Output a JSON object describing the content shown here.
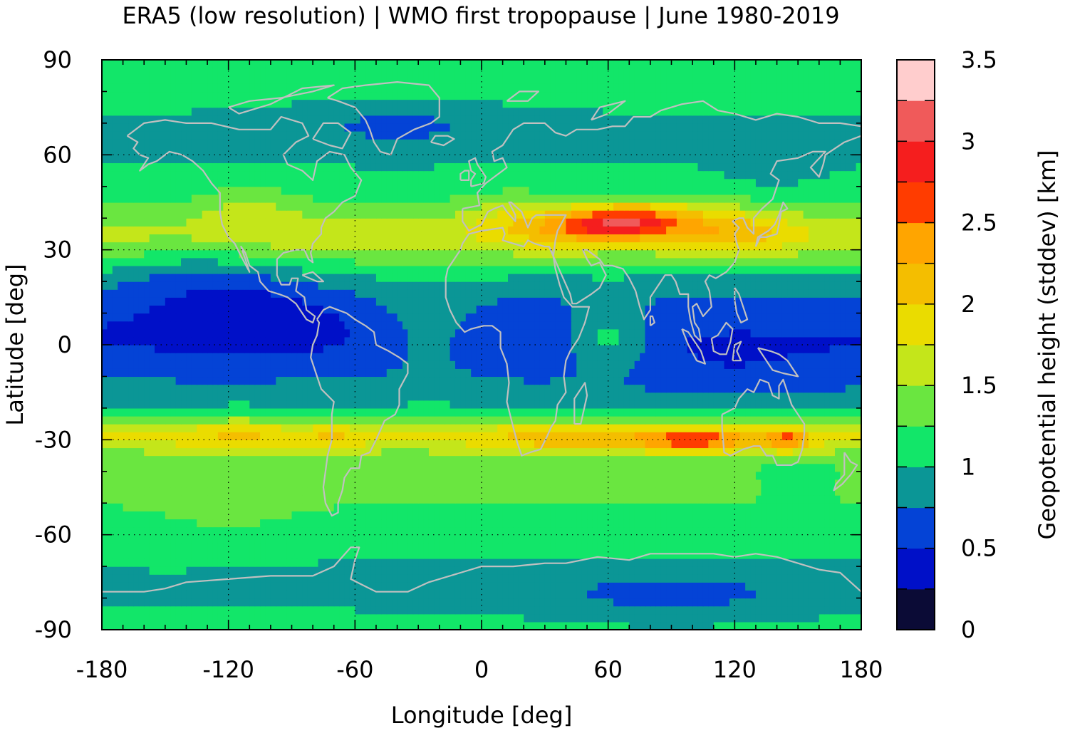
{
  "chart_data": {
    "type": "heatmap",
    "title": "ERA5 (low resolution) | WMO first tropopause | June 1980-2019",
    "xlabel": "Longitude [deg]",
    "ylabel": "Latitude [deg]",
    "colorbar_label": "Geopotential height (stddev) [km]",
    "xlim": [
      -180,
      180
    ],
    "ylim": [
      -90,
      90
    ],
    "grid": true,
    "x_ticks": [
      "-180",
      "-120",
      "-60",
      "0",
      "60",
      "120",
      "180"
    ],
    "y_ticks": [
      "90",
      "60",
      "30",
      "0",
      "-30",
      "-60",
      "-90"
    ],
    "colorbar": {
      "range": [
        0,
        3.5
      ],
      "tick_labels": [
        "3.5",
        "3",
        "2.5",
        "2",
        "1.5",
        "1",
        "0.5",
        "0"
      ],
      "levels": [
        {
          "from": 0.0,
          "to": 0.25,
          "color": "#0b0b36"
        },
        {
          "from": 0.25,
          "to": 0.5,
          "color": "#0010c8"
        },
        {
          "from": 0.5,
          "to": 0.75,
          "color": "#0443d6"
        },
        {
          "from": 0.75,
          "to": 1.0,
          "color": "#0b9696"
        },
        {
          "from": 1.0,
          "to": 1.25,
          "color": "#12e669"
        },
        {
          "from": 1.25,
          "to": 1.5,
          "color": "#6ae640"
        },
        {
          "from": 1.5,
          "to": 1.75,
          "color": "#c4e61a"
        },
        {
          "from": 1.75,
          "to": 2.0,
          "color": "#eadc00"
        },
        {
          "from": 2.0,
          "to": 2.25,
          "color": "#f4be00"
        },
        {
          "from": 2.25,
          "to": 2.5,
          "color": "#ffa500"
        },
        {
          "from": 2.5,
          "to": 2.75,
          "color": "#ff3c00"
        },
        {
          "from": 2.75,
          "to": 3.0,
          "color": "#f51e1e"
        },
        {
          "from": 3.0,
          "to": 3.25,
          "color": "#f05a5a"
        },
        {
          "from": 3.25,
          "to": 3.5,
          "color": "#ffcdcd"
        }
      ]
    },
    "features": [
      {
        "name": "northern subtropical jet maximum",
        "lon_range": [
          20,
          120
        ],
        "lat": 38,
        "value": 2.9
      },
      {
        "name": "southern subtropical jet maximum",
        "lon_range": [
          70,
          150
        ],
        "lat": -30,
        "value": 2.8
      },
      {
        "name": "tropical minimum band",
        "lat_range": [
          -20,
          25
        ],
        "value": 0.4
      },
      {
        "name": "Arctic region",
        "lat_range": [
          60,
          90
        ],
        "value": 0.9
      },
      {
        "name": "Antarctic region",
        "lat_range": [
          -90,
          -65
        ],
        "value": 0.9
      }
    ]
  }
}
